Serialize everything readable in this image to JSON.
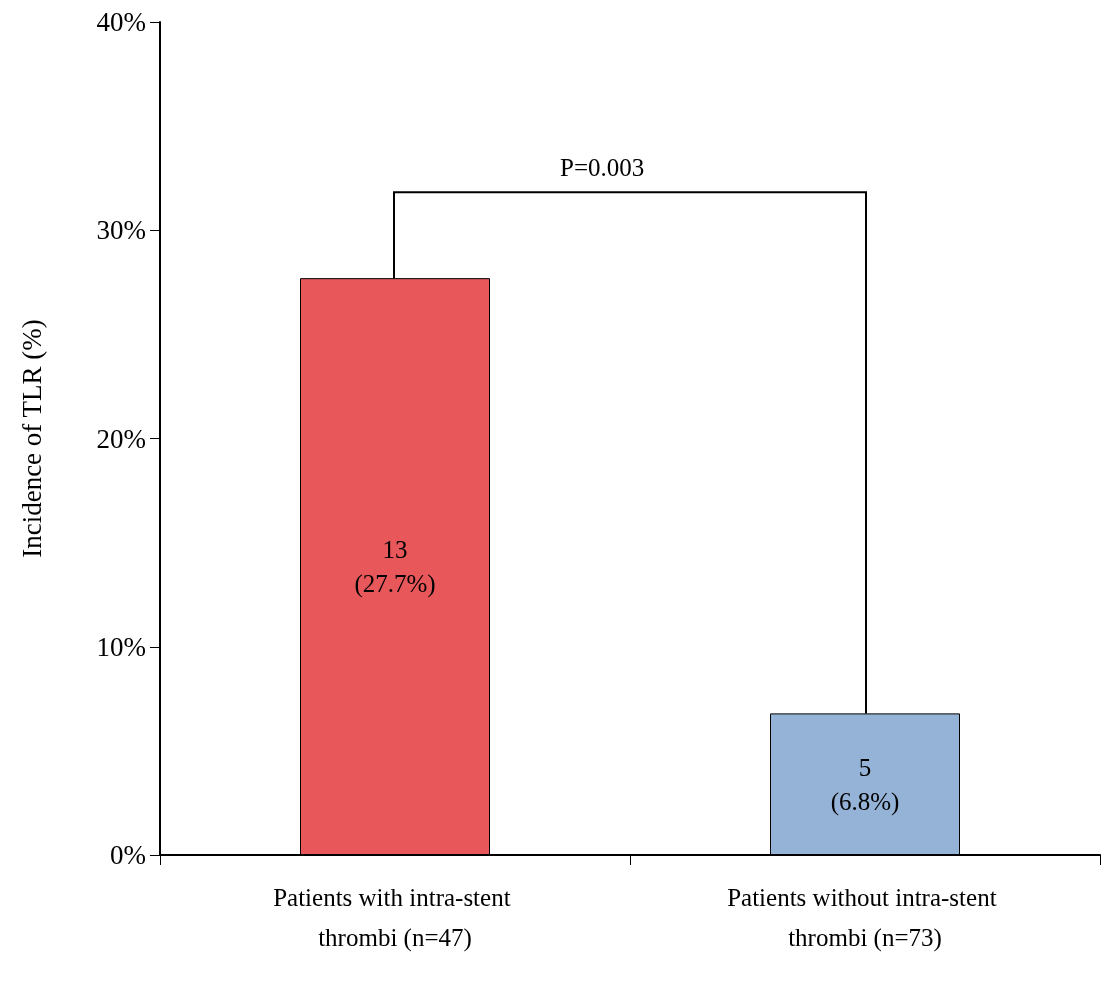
{
  "chart_data": {
    "type": "bar",
    "ylabel": "Incidence of TLR (%)",
    "categories": [
      "Patients with intra-stent thrombi (n=47)",
      "Patients without intra-stent thrombi (n=73)"
    ],
    "values": [
      27.7,
      6.8
    ],
    "colors": [
      "#e8585b",
      "#95b3d7"
    ],
    "value_labels": [
      "13\n(27.7%)",
      "5\n(6.8%)"
    ],
    "ylim": [
      0,
      40
    ],
    "yticks": [
      {
        "value": 0,
        "label": "0%"
      },
      {
        "value": 10,
        "label": "10%"
      },
      {
        "value": 20,
        "label": "20%"
      },
      {
        "value": 30,
        "label": "30%"
      },
      {
        "value": 40,
        "label": "40%"
      }
    ],
    "annotations": [
      "P=0.003"
    ],
    "grid": false
  }
}
